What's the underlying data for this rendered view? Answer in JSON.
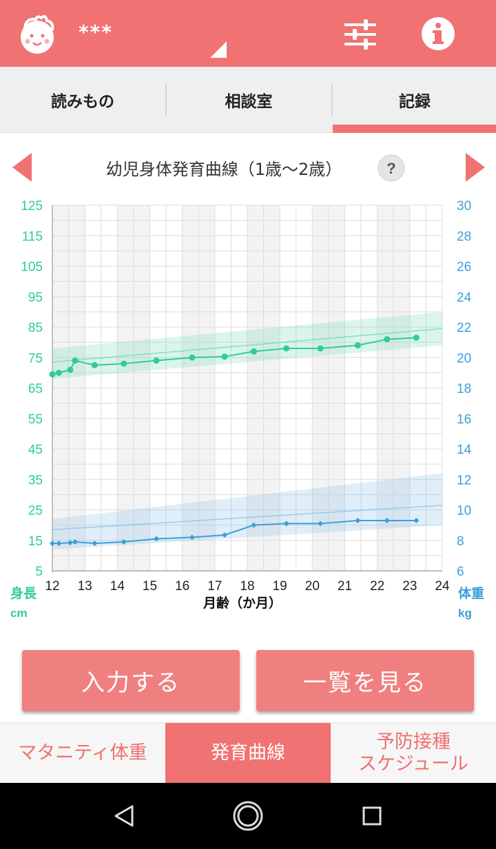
{
  "header": {
    "user_name": "***",
    "icons": [
      "baby-face-icon",
      "dropdown-triangle-icon",
      "sliders-icon",
      "info-icon"
    ]
  },
  "tabs": [
    {
      "label": "読みもの",
      "active": false
    },
    {
      "label": "相談室",
      "active": false
    },
    {
      "label": "記録",
      "active": true
    }
  ],
  "chart_header": {
    "title": "幼児身体発育曲線（1歳〜2歳）",
    "help_icon": "question-mark-icon"
  },
  "chart_data": {
    "type": "line",
    "xlabel": "月齢（か月）",
    "x_ticks": [
      "12",
      "13",
      "14",
      "15",
      "16",
      "17",
      "18",
      "19",
      "20",
      "21",
      "22",
      "23",
      "24"
    ],
    "xlim": [
      12,
      24
    ],
    "left_axis": {
      "label_line1": "身長",
      "label_line2": "cm",
      "ticks": [
        "125",
        "115",
        "105",
        "95",
        "85",
        "75",
        "65",
        "55",
        "45",
        "35",
        "25",
        "15",
        "5"
      ],
      "ylim": [
        5,
        125
      ],
      "color": "#2ecb9c"
    },
    "right_axis": {
      "label_line1": "体重",
      "label_line2": "kg",
      "ticks": [
        "30",
        "28",
        "26",
        "24",
        "22",
        "20",
        "18",
        "16",
        "14",
        "12",
        "10",
        "8",
        "6"
      ],
      "ylim": [
        6,
        30
      ],
      "color": "#3a9fd8"
    },
    "height_band": {
      "x": [
        12,
        24
      ],
      "upper": [
        78,
        90
      ],
      "lower": [
        68,
        79
      ],
      "median": [
        73.5,
        84.5
      ]
    },
    "weight_band": {
      "x": [
        12,
        24
      ],
      "upper": [
        9.4,
        12.4
      ],
      "lower": [
        7.4,
        9.0
      ],
      "median": [
        8.7,
        10.3
      ]
    },
    "series": [
      {
        "name": "身長",
        "axis": "left",
        "color": "#2ecb9c",
        "x": [
          12.0,
          12.2,
          12.55,
          12.7,
          13.3,
          14.2,
          15.2,
          16.3,
          17.3,
          18.2,
          19.2,
          20.25,
          21.4,
          22.3,
          23.2
        ],
        "y": [
          69.5,
          70,
          71,
          74,
          72.5,
          73,
          74,
          75,
          75.3,
          77,
          78,
          78,
          79,
          81,
          81.5
        ]
      },
      {
        "name": "体重",
        "axis": "right",
        "color": "#3a9fd8",
        "x": [
          12.0,
          12.2,
          12.55,
          12.7,
          13.3,
          14.2,
          15.2,
          16.3,
          17.3,
          18.2,
          19.2,
          20.25,
          21.4,
          22.3,
          23.2
        ],
        "y": [
          7.8,
          7.8,
          7.85,
          7.9,
          7.8,
          7.9,
          8.1,
          8.2,
          8.35,
          9.0,
          9.1,
          9.1,
          9.3,
          9.3,
          9.3
        ]
      }
    ]
  },
  "buttons": {
    "input": "入力する",
    "list": "一覧を見る"
  },
  "bottom_tabs": [
    {
      "label": "マタニティ体重",
      "active": false
    },
    {
      "label": "発育曲線",
      "active": true
    },
    {
      "label_line1": "予防接種",
      "label_line2": "スケジュール",
      "active": false
    }
  ],
  "colors": {
    "accent": "#f07272",
    "height": "#2ecb9c",
    "weight": "#3a9fd8"
  }
}
